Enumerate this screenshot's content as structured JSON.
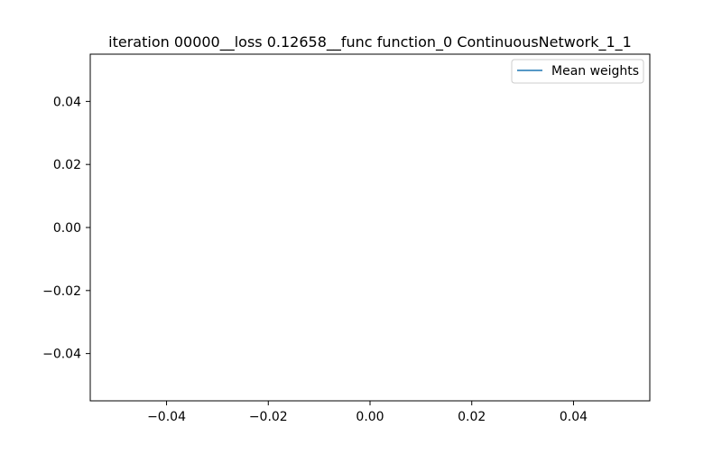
{
  "chart_data": {
    "type": "line",
    "title": "iteration 00000__loss 0.12658__func function_0 ContinuousNetwork_1_1",
    "xlabel": "",
    "ylabel": "",
    "xlim": [
      -0.055,
      0.055
    ],
    "ylim": [
      -0.055,
      0.055
    ],
    "xticks": [
      -0.04,
      -0.02,
      0.0,
      0.02,
      0.04
    ],
    "xtick_labels": [
      "−0.04",
      "−0.02",
      "0.00",
      "0.02",
      "0.04"
    ],
    "yticks": [
      -0.04,
      -0.02,
      0.0,
      0.02,
      0.04
    ],
    "ytick_labels": [
      "−0.04",
      "−0.02",
      "0.00",
      "0.02",
      "0.04"
    ],
    "grid": false,
    "legend_position": "upper-right",
    "series": [
      {
        "name": "Mean weights",
        "color": "#1f77b4",
        "x": [],
        "y": []
      }
    ]
  }
}
